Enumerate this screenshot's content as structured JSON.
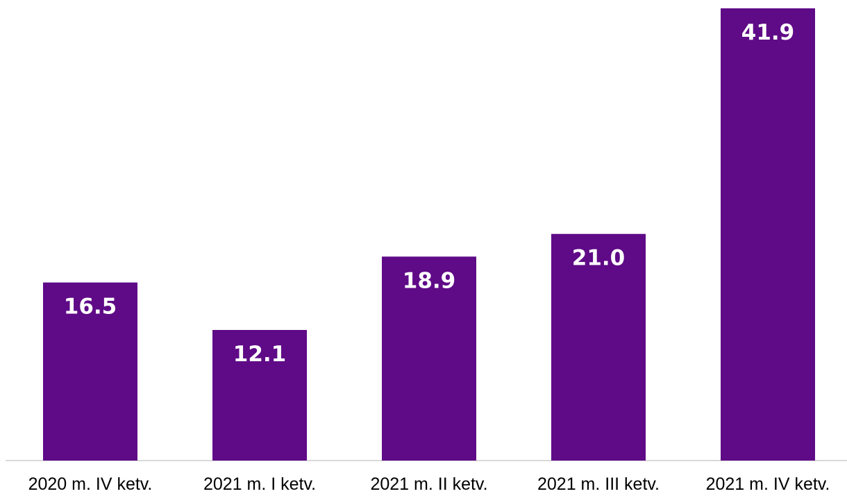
{
  "chart_data": {
    "type": "bar",
    "categories": [
      "2020 m. IV ketv.",
      "2021 m. I ketv.",
      "2021 m. II ketv.",
      "2021 m. III ketv.",
      "2021 m. IV ketv."
    ],
    "values": [
      16.5,
      12.1,
      18.9,
      21.0,
      41.9
    ],
    "value_labels": [
      "16.5",
      "12.1",
      "18.9",
      "21.0",
      "41.9"
    ],
    "title": "",
    "xlabel": "",
    "ylabel": "",
    "ylim": [
      0,
      41.9
    ],
    "grid": false,
    "legend": "none",
    "colors": {
      "bar": "#5f0a87",
      "axis": "#d9d9d9",
      "label": "#ffffff"
    }
  }
}
